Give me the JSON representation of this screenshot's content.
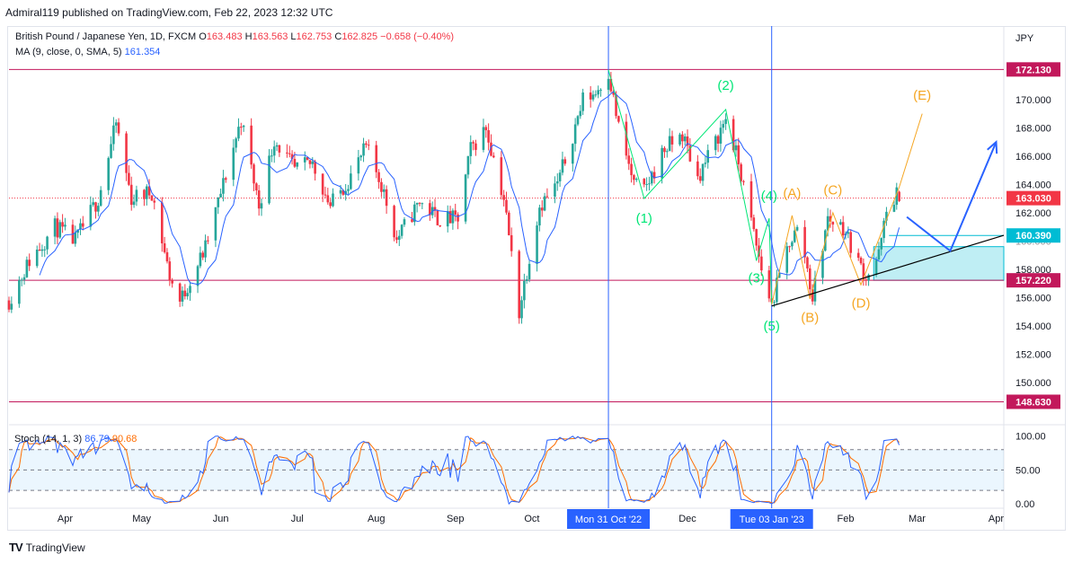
{
  "header": {
    "text": "Admiral119 published on TradingView.com, Feb 22, 2023 12:32 UTC"
  },
  "legend": {
    "symbol": "British Pound / Japanese Yen, 1D, FXCM",
    "o_label": "O",
    "o": "163.483",
    "h_label": "H",
    "h": "163.563",
    "l_label": "L",
    "l": "162.753",
    "c_label": "C",
    "c": "162.825",
    "change": "−0.658 (−0.40%)",
    "ma_label": "MA (9, close, 0, SMA, 5)",
    "ma_value": "161.354"
  },
  "stoch_legend": {
    "label": "Stoch (14, 1, 3)",
    "k": "86.79",
    "d": "90.68"
  },
  "footer": {
    "brand": "TradingView",
    "logo": "TV"
  },
  "colors": {
    "up": "#26a69a",
    "down": "#f23645",
    "ma": "#2962ff",
    "stoch_k": "#2962ff",
    "stoch_d": "#ff6d00",
    "green_wave": "#00e676",
    "orange_wave": "#f5a623",
    "level": "#c2185b",
    "current": "#f23645",
    "teal": "#00bcd4",
    "band": "rgba(0,188,212,0.25)"
  },
  "chart_data": [
    {
      "type": "candlestick",
      "title": "British Pound / Japanese Yen, 1D, FXCM",
      "currency_label": "JPY",
      "ylim": [
        147.2,
        174.5
      ],
      "y_ticks": [
        "150.000",
        "152.000",
        "154.000",
        "156.000",
        "158.000",
        "160.000",
        "162.000",
        "164.000",
        "166.000",
        "168.000",
        "170.000"
      ],
      "x_labels": [
        "Apr",
        "May",
        "Jun",
        "Jul",
        "Aug",
        "Sep",
        "Oct",
        "Nov",
        "Dec",
        "Jan",
        "Feb",
        "Mar",
        "Apr"
      ],
      "x_label_dates": [
        "2022-04-01",
        "2022-05-01",
        "2022-06-01",
        "2022-07-01",
        "2022-08-01",
        "2022-09-01",
        "2022-10-01",
        "2022-11-01",
        "2022-12-01",
        "2023-01-01",
        "2023-02-01",
        "2023-03-01",
        "2023-04-01"
      ],
      "xlim": [
        "2022-03-10",
        "2023-04-04"
      ],
      "vlines": [
        {
          "date": "2022-10-31",
          "label": "Mon 31 Oct '22"
        },
        {
          "date": "2023-01-03",
          "label": "Tue 03 Jan '23"
        }
      ],
      "hlines": [
        {
          "price": 172.13,
          "label": "172.130",
          "kind": "level"
        },
        {
          "price": 157.22,
          "label": "157.220",
          "kind": "level"
        },
        {
          "price": 148.63,
          "label": "148.630",
          "kind": "level"
        },
        {
          "price": 163.03,
          "label": "163.030",
          "kind": "current"
        }
      ],
      "band": {
        "from": "2023-02-12",
        "to": "2023-04-04",
        "low": 157.22,
        "high": 159.6
      },
      "teal_level": {
        "price": 160.39,
        "label": "160.390",
        "from": "2023-02-18"
      },
      "obscured_tick": "160.000",
      "waypoints": [
        [
          "2022-03-10",
          155.8
        ],
        [
          "2022-03-18",
          158.6
        ],
        [
          "2022-03-28",
          161.0
        ],
        [
          "2022-04-05",
          160.0
        ],
        [
          "2022-04-14",
          163.0
        ],
        [
          "2022-04-21",
          168.3
        ],
        [
          "2022-04-27",
          163.0
        ],
        [
          "2022-05-05",
          163.5
        ],
        [
          "2022-05-12",
          157.5
        ],
        [
          "2022-05-16",
          155.7
        ],
        [
          "2022-05-26",
          159.5
        ],
        [
          "2022-06-02",
          164.0
        ],
        [
          "2022-06-09",
          168.6
        ],
        [
          "2022-06-16",
          162.5
        ],
        [
          "2022-06-22",
          167.2
        ],
        [
          "2022-06-30",
          165.0
        ],
        [
          "2022-07-07",
          165.5
        ],
        [
          "2022-07-14",
          162.5
        ],
        [
          "2022-07-21",
          164.3
        ],
        [
          "2022-07-28",
          166.6
        ],
        [
          "2022-08-03",
          164.0
        ],
        [
          "2022-08-09",
          160.1
        ],
        [
          "2022-08-18",
          162.8
        ],
        [
          "2022-08-25",
          161.6
        ],
        [
          "2022-09-02",
          161.5
        ],
        [
          "2022-09-07",
          166.5
        ],
        [
          "2022-09-13",
          168.0
        ],
        [
          "2022-09-20",
          163.0
        ],
        [
          "2022-09-26",
          155.0
        ],
        [
          "2022-09-28",
          157.0
        ],
        [
          "2022-10-04",
          162.5
        ],
        [
          "2022-10-11",
          164.0
        ],
        [
          "2022-10-17",
          167.5
        ],
        [
          "2022-10-21",
          170.0
        ],
        [
          "2022-10-26",
          170.5
        ],
        [
          "2022-10-31",
          172.0
        ],
        [
          "2022-11-04",
          168.0
        ],
        [
          "2022-11-10",
          164.0
        ],
        [
          "2022-11-14",
          163.5
        ],
        [
          "2022-11-22",
          166.5
        ],
        [
          "2022-11-29",
          167.5
        ],
        [
          "2022-12-05",
          164.5
        ],
        [
          "2022-12-12",
          167.0
        ],
        [
          "2022-12-16",
          168.7
        ],
        [
          "2022-12-21",
          165.5
        ],
        [
          "2022-12-27",
          160.5
        ],
        [
          "2022-12-30",
          158.0
        ],
        [
          "2023-01-03",
          155.5
        ],
        [
          "2023-01-10",
          160.0
        ],
        [
          "2023-01-14",
          161.0
        ],
        [
          "2023-01-18",
          157.0
        ],
        [
          "2023-01-19",
          156.0
        ],
        [
          "2023-01-25",
          161.6
        ],
        [
          "2023-01-31",
          161.0
        ],
        [
          "2023-02-06",
          158.5
        ],
        [
          "2023-02-09",
          157.5
        ],
        [
          "2023-02-14",
          159.0
        ],
        [
          "2023-02-17",
          162.0
        ],
        [
          "2023-02-21",
          163.4
        ],
        [
          "2023-02-22",
          162.83
        ]
      ],
      "seed": 11,
      "ma": {
        "label": "MA (9, close, 0, SMA, 5)",
        "period": 9
      },
      "wave_green": {
        "points": [
          [
            "2022-10-31",
            172.1
          ],
          [
            "2022-11-14",
            163.0
          ],
          [
            "2022-12-16",
            169.3
          ],
          [
            "2022-12-28",
            158.6
          ],
          [
            "2023-01-02",
            161.6
          ],
          [
            "2023-01-03",
            155.5
          ]
        ],
        "labels": [
          {
            "text": "(1)",
            "date": "2022-11-14",
            "price": 161.6
          },
          {
            "text": "(2)",
            "date": "2022-12-16",
            "price": 171.0
          },
          {
            "text": "(3)",
            "date": "2022-12-28",
            "price": 157.4
          },
          {
            "text": "(4)",
            "date": "2023-01-02",
            "price": 163.2
          },
          {
            "text": "(5)",
            "date": "2023-01-03",
            "price": 154.0
          }
        ]
      },
      "wave_orange": {
        "points": [
          [
            "2023-01-03",
            155.5
          ],
          [
            "2023-01-11",
            161.8
          ],
          [
            "2023-01-18",
            155.9
          ],
          [
            "2023-01-27",
            162.0
          ],
          [
            "2023-02-07",
            156.9
          ],
          [
            "2023-02-22",
            163.8
          ],
          [
            "2023-03-03",
            169.0
          ]
        ],
        "labels": [
          {
            "text": "(A)",
            "date": "2023-01-11",
            "price": 163.4
          },
          {
            "text": "(B)",
            "date": "2023-01-18",
            "price": 154.6
          },
          {
            "text": "(C)",
            "date": "2023-01-27",
            "price": 163.6
          },
          {
            "text": "(D)",
            "date": "2023-02-07",
            "price": 155.6
          },
          {
            "text": "(E)",
            "date": "2023-03-03",
            "price": 170.3
          }
        ]
      },
      "trendline": {
        "from": [
          "2023-01-03",
          155.4
        ],
        "to": [
          "2023-04-04",
          160.4
        ]
      },
      "projection": {
        "points": [
          [
            "2023-02-25",
            161.7
          ],
          [
            "2023-03-14",
            159.3
          ],
          [
            "2023-04-01",
            167.0
          ]
        ]
      }
    },
    {
      "type": "line",
      "title": "Stoch (14, 1, 3)",
      "ylim": [
        -5,
        110
      ],
      "y_ticks": [
        "0.00",
        "50.00",
        "100.00"
      ],
      "levels": [
        20,
        50,
        80
      ],
      "k_last": 86.79,
      "d_last": 90.68,
      "series": [
        {
          "name": "K"
        },
        {
          "name": "D"
        }
      ]
    }
  ]
}
